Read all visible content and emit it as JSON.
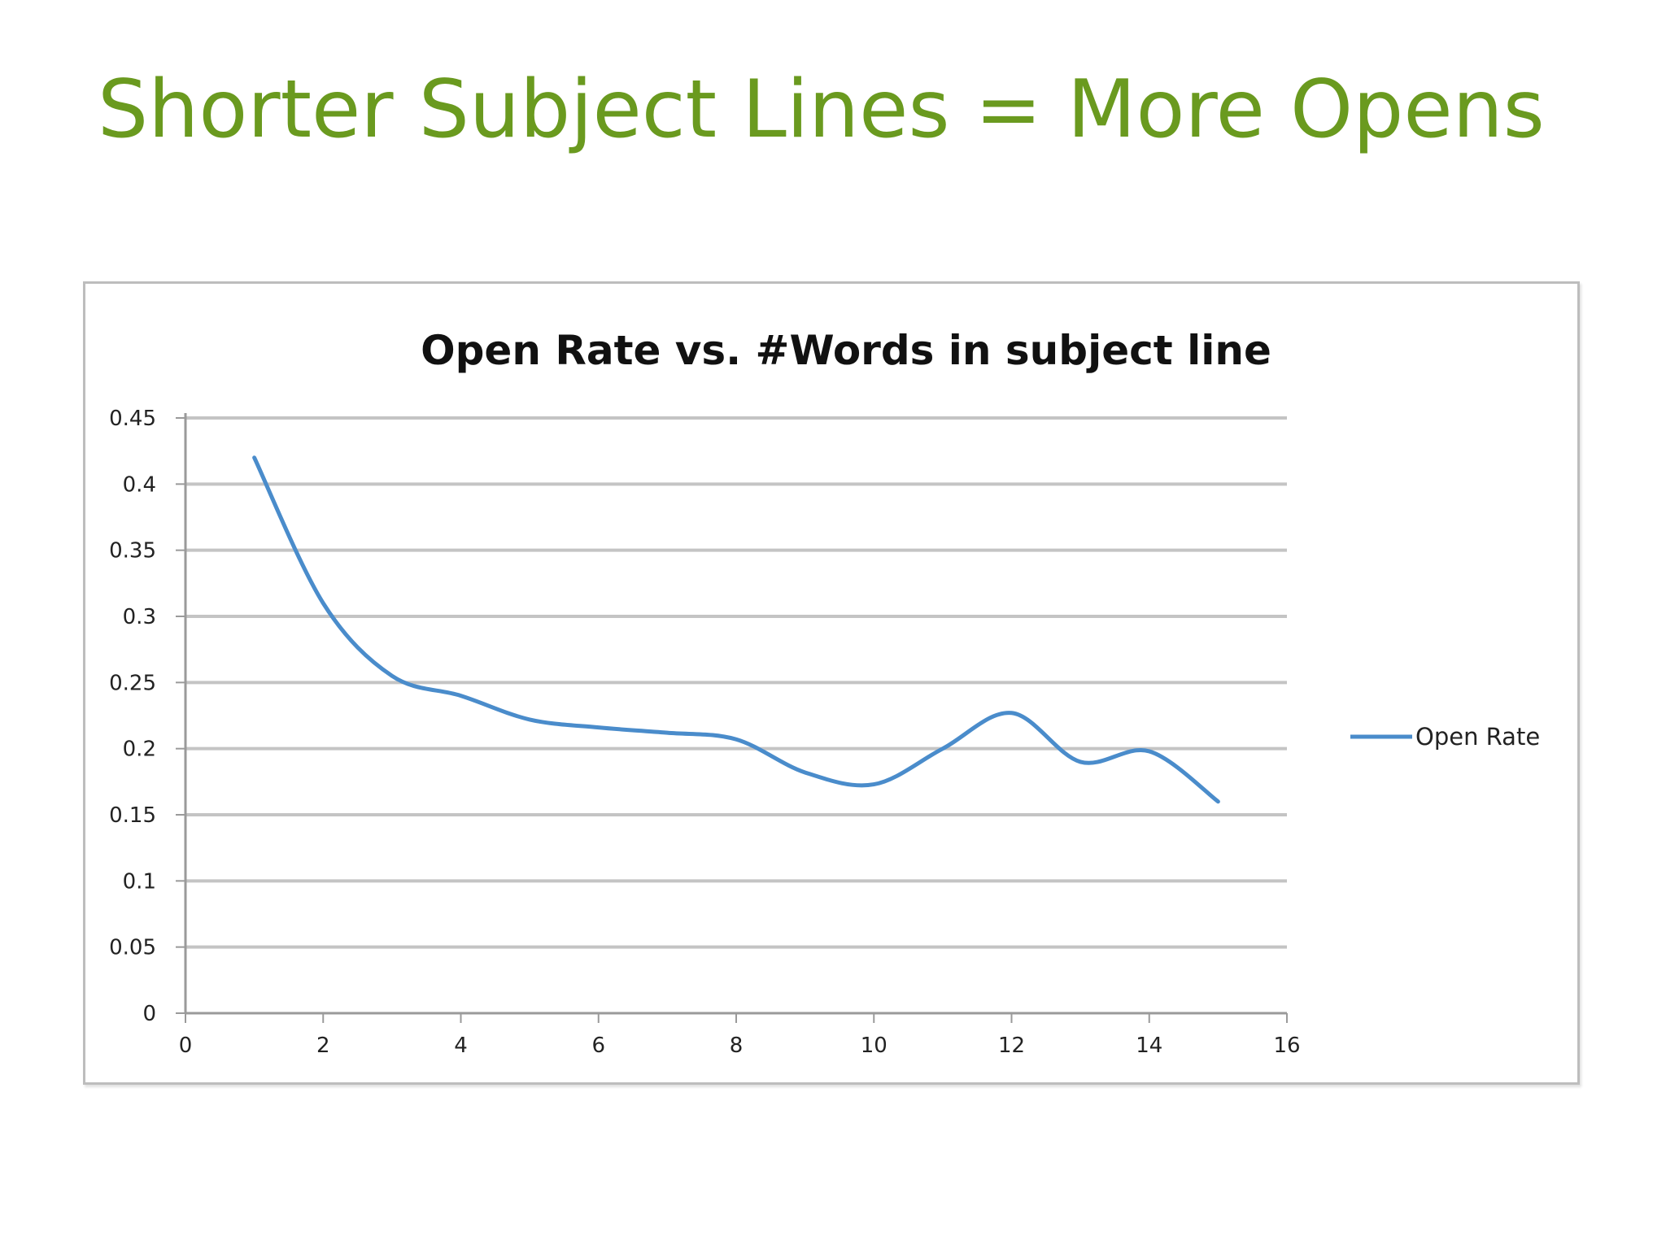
{
  "slide": {
    "title": "Shorter Subject Lines = More Opens",
    "title_color": "#6a9a1f"
  },
  "chart_data": {
    "type": "line",
    "title": "Open Rate vs. #Words in subject line",
    "xlabel": "",
    "ylabel": "",
    "xlim": [
      0,
      16
    ],
    "ylim": [
      0,
      0.45
    ],
    "x_ticks": [
      "0",
      "2",
      "4",
      "6",
      "8",
      "10",
      "12",
      "14",
      "16"
    ],
    "y_ticks": [
      "0",
      "0.05",
      "0.1",
      "0.15",
      "0.2",
      "0.25",
      "0.3",
      "0.35",
      "0.4",
      "0.45"
    ],
    "grid": "horizontal",
    "legend_position": "right",
    "smooth": true,
    "series": [
      {
        "name": "Open Rate",
        "color": "#4a8ccb",
        "x": [
          1,
          2,
          3,
          4,
          5,
          6,
          7,
          8,
          9,
          10,
          11,
          12,
          13,
          14,
          15
        ],
        "y": [
          0.42,
          0.31,
          0.255,
          0.24,
          0.222,
          0.216,
          0.212,
          0.207,
          0.182,
          0.173,
          0.2,
          0.227,
          0.19,
          0.198,
          0.16
        ]
      }
    ]
  }
}
